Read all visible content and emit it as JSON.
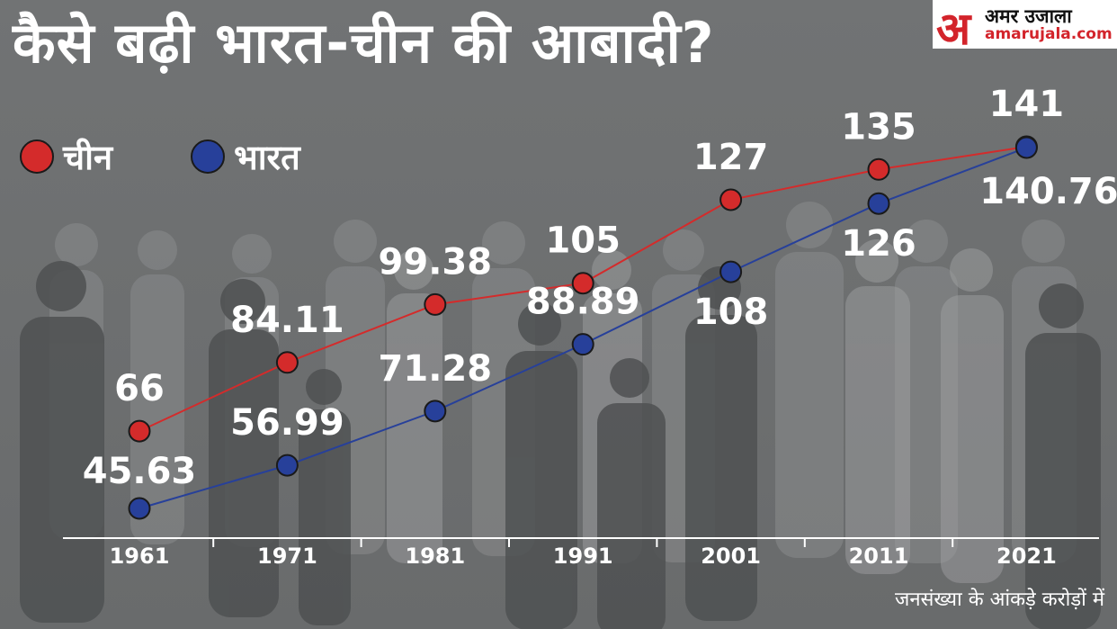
{
  "title": "कैसे बढ़ी भारत-चीन की आबादी?",
  "logo": {
    "mark": "अ",
    "name": "अमर उजाला",
    "url": "amarujala.com"
  },
  "legend": [
    {
      "label": "चीन",
      "color": "#d42b2b"
    },
    {
      "label": "भारत",
      "color": "#27409a"
    }
  ],
  "footnote": "जनसंख्या के आंकड़े करोड़ों में",
  "chart_data": {
    "type": "line",
    "title": "कैसे बढ़ी भारत-चीन की आबादी?",
    "categories": [
      "1961",
      "1971",
      "1981",
      "1991",
      "2001",
      "2011",
      "2021"
    ],
    "series": [
      {
        "name": "चीन",
        "color": "#d42b2b",
        "values": [
          66,
          84.11,
          99.38,
          105,
          127,
          135,
          141
        ],
        "labels": [
          "66",
          "84.11",
          "99.38",
          "105",
          "127",
          "135",
          "141"
        ]
      },
      {
        "name": "भारत",
        "color": "#27409a",
        "values": [
          45.63,
          56.99,
          71.28,
          88.89,
          108,
          126,
          140.76
        ],
        "labels": [
          "45.63",
          "56.99",
          "71.28",
          "88.89",
          "108",
          "126",
          "140.76"
        ]
      }
    ],
    "ylabel": "",
    "xlabel": "",
    "note": "जनसंख्या के आंकड़े करोड़ों में",
    "grid": false,
    "legend_position": "top-left"
  }
}
